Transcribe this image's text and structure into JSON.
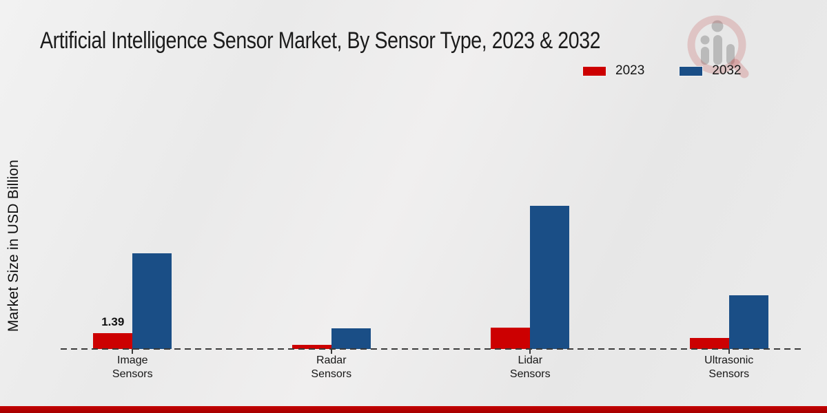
{
  "chart_data": {
    "type": "bar",
    "title": "Artificial Intelligence Sensor Market, By Sensor Type, 2023 & 2032",
    "ylabel": "Market Size in USD Billion",
    "categories": [
      "Image Sensors",
      "Radar Sensors",
      "Lidar Sensors",
      "Ultrasonic Sensors"
    ],
    "series": [
      {
        "name": "2023",
        "color": "#cc0001",
        "values": [
          1.39,
          0.36,
          1.87,
          0.97
        ]
      },
      {
        "name": "2032",
        "color": "#1a4e86",
        "values": [
          8.4,
          1.81,
          12.63,
          4.71
        ]
      }
    ],
    "value_labels": [
      {
        "category": "Image Sensors",
        "series": "2023",
        "text": "1.39"
      }
    ],
    "ylim": [
      0,
      14
    ],
    "grid": false,
    "legend_position": "top-right",
    "baseline_style": "dashed"
  },
  "footer": {
    "accent_color": "#b50404"
  }
}
